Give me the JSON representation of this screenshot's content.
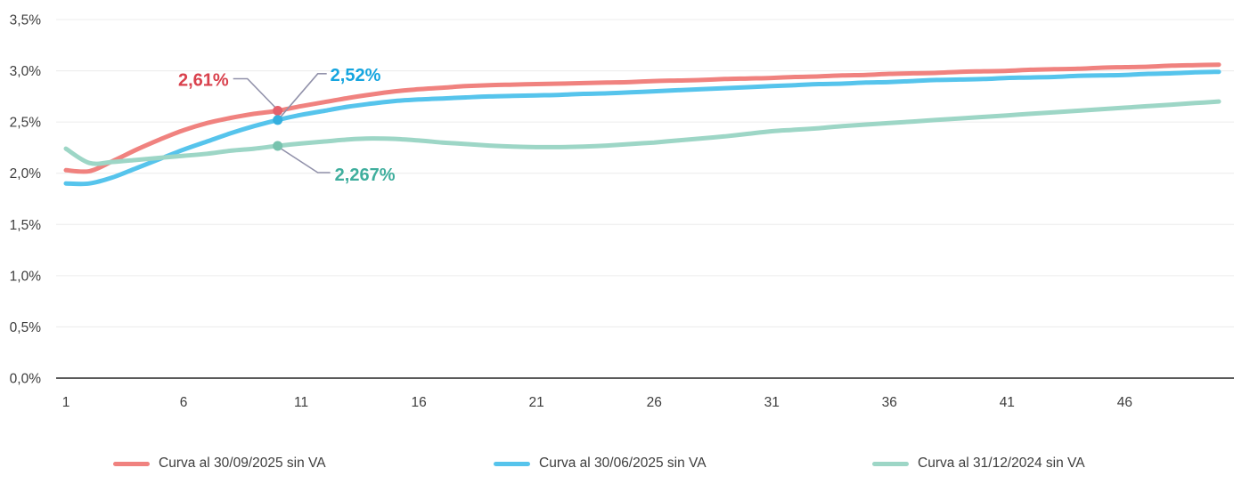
{
  "chart_data": {
    "type": "line",
    "title": "",
    "xlabel": "",
    "ylabel": "",
    "xlim": [
      1,
      50
    ],
    "ylim": [
      0,
      3.5
    ],
    "grid": "horizontal",
    "legend_position": "bottom",
    "x": [
      1,
      2,
      3,
      4,
      5,
      6,
      7,
      8,
      9,
      10,
      11,
      12,
      13,
      14,
      15,
      16,
      17,
      18,
      19,
      20,
      21,
      22,
      23,
      24,
      25,
      26,
      27,
      28,
      29,
      30,
      31,
      32,
      33,
      34,
      35,
      36,
      37,
      38,
      39,
      40,
      41,
      42,
      43,
      44,
      45,
      46,
      47,
      48,
      49,
      50
    ],
    "x_ticks": [
      1,
      6,
      11,
      16,
      21,
      26,
      31,
      36,
      41,
      46
    ],
    "y_ticks": [
      {
        "value": 0.0,
        "label": "0,0%"
      },
      {
        "value": 0.5,
        "label": "0,5%"
      },
      {
        "value": 1.0,
        "label": "1,0%"
      },
      {
        "value": 1.5,
        "label": "1,5%"
      },
      {
        "value": 2.0,
        "label": "2,0%"
      },
      {
        "value": 2.5,
        "label": "2,5%"
      },
      {
        "value": 3.0,
        "label": "3,0%"
      },
      {
        "value": 3.5,
        "label": "3,5%"
      }
    ],
    "series": [
      {
        "name": "Curva al 30/09/2025 sin VA",
        "color": "#F0827F",
        "marker_color": "#E4616C",
        "label_color": "#D9414D",
        "values": [
          2.03,
          2.02,
          2.12,
          2.23,
          2.33,
          2.42,
          2.49,
          2.54,
          2.58,
          2.61,
          2.655,
          2.695,
          2.735,
          2.77,
          2.8,
          2.82,
          2.835,
          2.85,
          2.86,
          2.865,
          2.87,
          2.875,
          2.88,
          2.885,
          2.89,
          2.9,
          2.905,
          2.91,
          2.92,
          2.925,
          2.93,
          2.94,
          2.945,
          2.955,
          2.96,
          2.97,
          2.975,
          2.98,
          2.99,
          2.995,
          3.0,
          3.01,
          3.015,
          3.02,
          3.03,
          3.035,
          3.04,
          3.05,
          3.055,
          3.06
        ]
      },
      {
        "name": "Curva al 30/06/2025 sin VA",
        "color": "#56C4EC",
        "marker_color": "#35AFDE",
        "label_color": "#15A5DF",
        "values": [
          1.9,
          1.9,
          1.96,
          2.05,
          2.14,
          2.23,
          2.31,
          2.39,
          2.46,
          2.52,
          2.57,
          2.61,
          2.65,
          2.68,
          2.705,
          2.72,
          2.73,
          2.74,
          2.75,
          2.755,
          2.76,
          2.765,
          2.775,
          2.78,
          2.79,
          2.8,
          2.81,
          2.82,
          2.83,
          2.84,
          2.85,
          2.86,
          2.87,
          2.875,
          2.885,
          2.89,
          2.9,
          2.91,
          2.915,
          2.92,
          2.93,
          2.935,
          2.94,
          2.95,
          2.955,
          2.96,
          2.97,
          2.975,
          2.985,
          2.99
        ]
      },
      {
        "name": "Curva al 31/12/2024 sin VA",
        "color": "#9DD6C6",
        "marker_color": "#78C3AE",
        "label_color": "#3FAE9D",
        "values": [
          2.24,
          2.1,
          2.11,
          2.13,
          2.15,
          2.17,
          2.19,
          2.22,
          2.24,
          2.267,
          2.29,
          2.31,
          2.33,
          2.34,
          2.335,
          2.32,
          2.3,
          2.285,
          2.27,
          2.26,
          2.255,
          2.255,
          2.26,
          2.27,
          2.285,
          2.3,
          2.32,
          2.34,
          2.36,
          2.385,
          2.41,
          2.425,
          2.44,
          2.46,
          2.475,
          2.49,
          2.505,
          2.52,
          2.535,
          2.55,
          2.565,
          2.58,
          2.595,
          2.61,
          2.625,
          2.64,
          2.655,
          2.67,
          2.685,
          2.7
        ]
      }
    ],
    "annotations": [
      {
        "series": 0,
        "x": 10,
        "value": 2.61,
        "label": "2,61%",
        "placement": "upper-left"
      },
      {
        "series": 1,
        "x": 10,
        "value": 2.52,
        "label": "2,52%",
        "placement": "upper-right"
      },
      {
        "series": 2,
        "x": 10,
        "value": 2.267,
        "label": "2,267%",
        "placement": "lower-right"
      }
    ],
    "connector_color": "#9191AA",
    "gridline_color": "#ECECEC",
    "axis_line_color": "#5A5A5A",
    "tick_text_color": "#3D3D3D"
  },
  "legend": {
    "items": [
      {
        "label": "Curva al 30/09/2025 sin VA"
      },
      {
        "label": "Curva al 30/06/2025 sin VA"
      },
      {
        "label": "Curva al 31/12/2024 sin VA"
      }
    ]
  }
}
